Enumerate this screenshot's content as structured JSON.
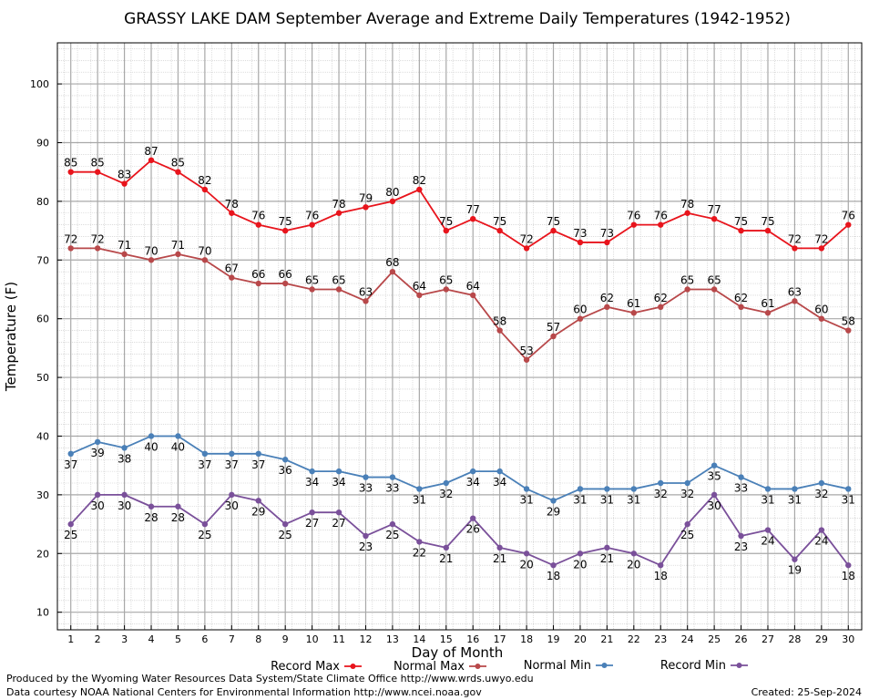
{
  "footer": {
    "produced_by": "Produced by the Wyoming Water Resources Data System/State Climate Office http://www.wrds.uwyo.edu",
    "courtesy": "Data courtesy NOAA National Centers for Environmental Information http://www.ncei.noaa.gov",
    "created": "Created:  25-Sep-2024"
  },
  "chart_data": {
    "type": "line",
    "title": "GRASSY LAKE DAM September Average and Extreme Daily Temperatures (1942-1952)",
    "xlabel": "Day of Month",
    "ylabel": "Temperature (F)",
    "x": [
      1,
      2,
      3,
      4,
      5,
      6,
      7,
      8,
      9,
      10,
      11,
      12,
      13,
      14,
      15,
      16,
      17,
      18,
      19,
      20,
      21,
      22,
      23,
      24,
      25,
      26,
      27,
      28,
      29,
      30
    ],
    "xlim": [
      0.5,
      30.5
    ],
    "ylim": [
      7,
      107
    ],
    "yticks": [
      10,
      20,
      30,
      40,
      50,
      60,
      70,
      80,
      90,
      100
    ],
    "grid": true,
    "legend_position": "bottom",
    "series": [
      {
        "name": "Record Max",
        "color": "#e8141c",
        "label_pos": "above",
        "values": [
          85,
          85,
          83,
          87,
          85,
          82,
          78,
          76,
          75,
          76,
          78,
          79,
          80,
          82,
          75,
          77,
          75,
          72,
          75,
          73,
          73,
          76,
          76,
          78,
          77,
          75,
          75,
          72,
          72,
          76
        ]
      },
      {
        "name": "Normal Max",
        "color": "#b8484a",
        "label_pos": "above",
        "values": [
          72,
          72,
          71,
          70,
          71,
          70,
          67,
          66,
          66,
          65,
          65,
          63,
          68,
          64,
          65,
          64,
          58,
          53,
          57,
          60,
          62,
          61,
          62,
          65,
          65,
          62,
          61,
          63,
          60,
          58
        ]
      },
      {
        "name": "Normal Min",
        "color": "#4a80b8",
        "label_pos": "below",
        "values": [
          37,
          39,
          38,
          40,
          40,
          37,
          37,
          37,
          36,
          34,
          34,
          33,
          33,
          31,
          32,
          34,
          34,
          31,
          29,
          31,
          31,
          31,
          32,
          32,
          35,
          33,
          31,
          31,
          32,
          31
        ]
      },
      {
        "name": "Record Min",
        "color": "#7a509a",
        "label_pos": "below",
        "values": [
          25,
          30,
          30,
          28,
          28,
          25,
          30,
          29,
          25,
          27,
          27,
          23,
          25,
          22,
          21,
          26,
          21,
          20,
          18,
          20,
          21,
          20,
          18,
          25,
          30,
          23,
          24,
          19,
          24,
          18
        ]
      }
    ]
  }
}
